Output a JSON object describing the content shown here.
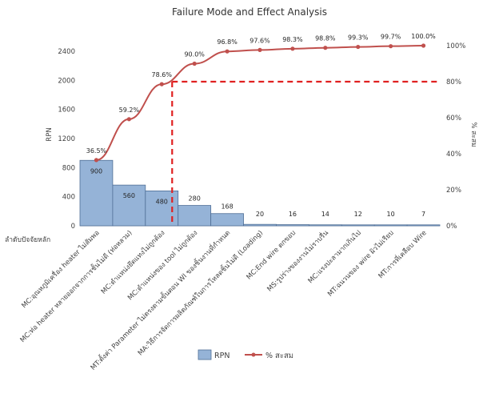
{
  "chart_data": {
    "type": "bar",
    "title": "Failure Mode and Effect Analysis",
    "xlabel": "ลำดับปัจจัยหลัก",
    "ylabel": "RPN",
    "y2label": "% สะสม",
    "ylim": [
      0,
      2400
    ],
    "y2lim": [
      0,
      100
    ],
    "y_ticks": [
      "0",
      "400",
      "800",
      "1200",
      "1600",
      "2000",
      "2400"
    ],
    "y2_ticks": [
      "0%",
      "20%",
      "40%",
      "60%",
      "80%",
      "100%"
    ],
    "categories": [
      "MC:อุณหภูมิเครื่อง heater ไม่สัมพอ",
      "MC:ท่อ heater หลายออกจากการชั้นไม่ดี (ท่อหลวม)",
      "MC:ตำแหน่งยึดแทงไม่ถูกต้อง",
      "MC:ตำแหน่งของ tool ไม่ถูกต้อง",
      "MT:ตั้งค่า Parameter ไม่ตรงตามขั้นตอน WI ของชิ้นงานที่กำหนด",
      "MA:วิธีการจัดการผลิตภัณฑ์ในการโหลดชิ้นไม่ดี (Loading)",
      "MC:End wire ตกขอบ",
      "MS:รูปร่างของงานไม่ราบรื่น",
      "MC:แรงปะลามากเกินไป",
      "MT:ฉนวนของ wire ผิวไม่เรียบ",
      "MT:การที่เคลือบ Wire"
    ],
    "series": [
      {
        "name": "RPN",
        "type": "bar",
        "color": "#95B3D7",
        "values": [
          900,
          560,
          480,
          280,
          168,
          20,
          16,
          14,
          12,
          10,
          7
        ]
      },
      {
        "name": "% สะสม",
        "type": "line",
        "color": "#C0504D",
        "values": [
          36.5,
          59.2,
          78.6,
          90.0,
          96.8,
          97.6,
          98.3,
          98.8,
          99.3,
          99.7,
          100.0
        ]
      }
    ],
    "bar_labels": [
      "900",
      "560",
      "480",
      "280",
      "168",
      "20",
      "16",
      "14",
      "12",
      "10",
      "7"
    ],
    "line_labels": [
      "36.5%",
      "59.2%",
      "78.6%",
      "90.0%",
      "96.8%",
      "97.6%",
      "98.3%",
      "98.8%",
      "99.3%",
      "99.7%",
      "100.0%"
    ],
    "reference_line": {
      "y2_value": 80,
      "color": "#E02020",
      "style": "dashed"
    },
    "grid": false,
    "legend_position": "bottom"
  }
}
